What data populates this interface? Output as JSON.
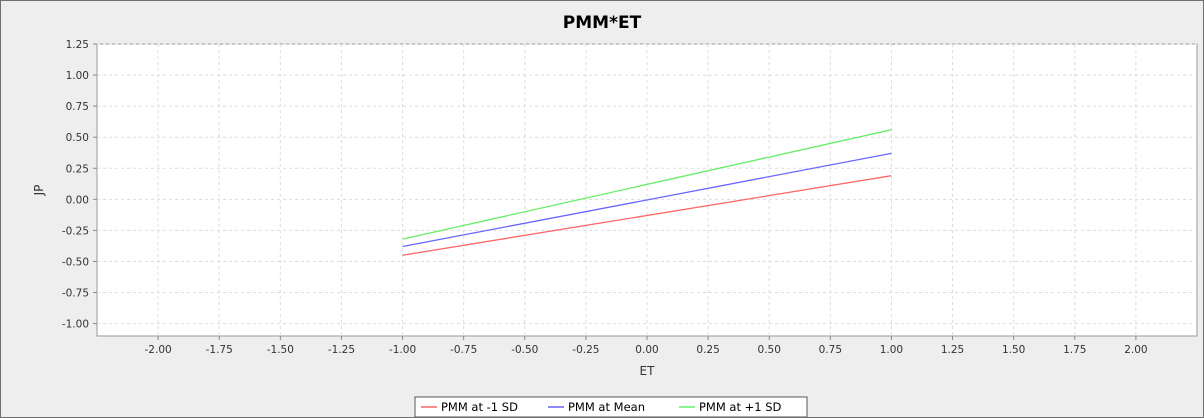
{
  "chart_data": {
    "type": "line",
    "title": "PMM*ET",
    "xlabel": "ET",
    "ylabel": "JP",
    "xlim": [
      -2.25,
      2.25
    ],
    "ylim": [
      -1.1,
      1.25
    ],
    "x_ticks": [
      "-2.00",
      "-1.75",
      "-1.50",
      "-1.25",
      "-1.00",
      "-0.75",
      "-0.50",
      "-0.25",
      "0.00",
      "0.25",
      "0.50",
      "0.75",
      "1.00",
      "1.25",
      "1.50",
      "1.75",
      "2.00"
    ],
    "y_ticks": [
      "1.25",
      "1.00",
      "0.75",
      "0.50",
      "0.25",
      "0.00",
      "-0.25",
      "-0.50",
      "-0.75",
      "-1.00"
    ],
    "grid": true,
    "legend_position": "bottom",
    "series": [
      {
        "name": "PMM at -1 SD",
        "color": "#ff6666",
        "x": [
          -1.0,
          1.0
        ],
        "y": [
          -0.45,
          0.19
        ]
      },
      {
        "name": "PMM at Mean",
        "color": "#6666ff",
        "x": [
          -1.0,
          1.0
        ],
        "y": [
          -0.38,
          0.37
        ]
      },
      {
        "name": "PMM at +1 SD",
        "color": "#66ee66",
        "x": [
          -1.0,
          1.0
        ],
        "y": [
          -0.32,
          0.56
        ]
      }
    ]
  }
}
